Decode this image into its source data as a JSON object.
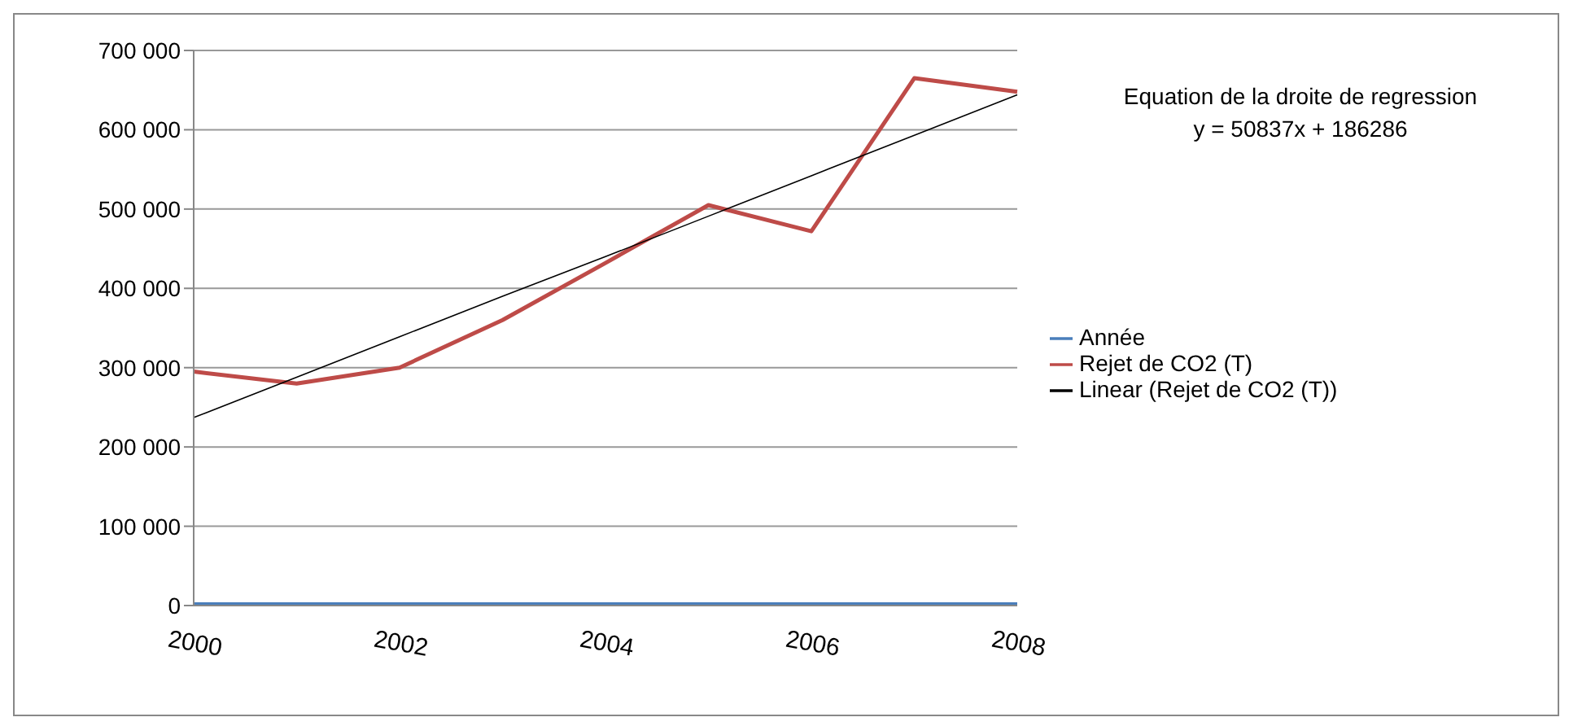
{
  "chart_data": {
    "type": "line",
    "categories": [
      "2000",
      null,
      "2002",
      null,
      "2004",
      null,
      "2006",
      null,
      "2008"
    ],
    "series": [
      {
        "name": "Année",
        "color": "#4a7ebb",
        "values": [
          0,
          0,
          0,
          0,
          0,
          0,
          0,
          0,
          0
        ]
      },
      {
        "name": "Rejet de CO2 (T)",
        "color": "#be4b48",
        "values": [
          295000,
          280000,
          300000,
          360000,
          432000,
          505000,
          472000,
          665000,
          648000
        ]
      },
      {
        "name": "Linear (Rejet de CO2 (T))",
        "color": "#000000",
        "values": [
          237000,
          288000,
          339000,
          390000,
          440000,
          491000,
          542000,
          593000,
          644000
        ]
      }
    ],
    "ylim": [
      0,
      700000
    ],
    "yticks": [
      {
        "value": 0,
        "label": "0"
      },
      {
        "value": 100000,
        "label": "100 000"
      },
      {
        "value": 200000,
        "label": "200 000"
      },
      {
        "value": 300000,
        "label": "300 000"
      },
      {
        "value": 400000,
        "label": "400 000"
      },
      {
        "value": 500000,
        "label": "500 000"
      },
      {
        "value": 600000,
        "label": "600 000"
      },
      {
        "value": 700000,
        "label": "700 000"
      }
    ],
    "grid": "y",
    "legend": "right",
    "marker": "none",
    "annotations": [
      "Equation de la droite de regression",
      "y = 50837x + 186286"
    ]
  }
}
